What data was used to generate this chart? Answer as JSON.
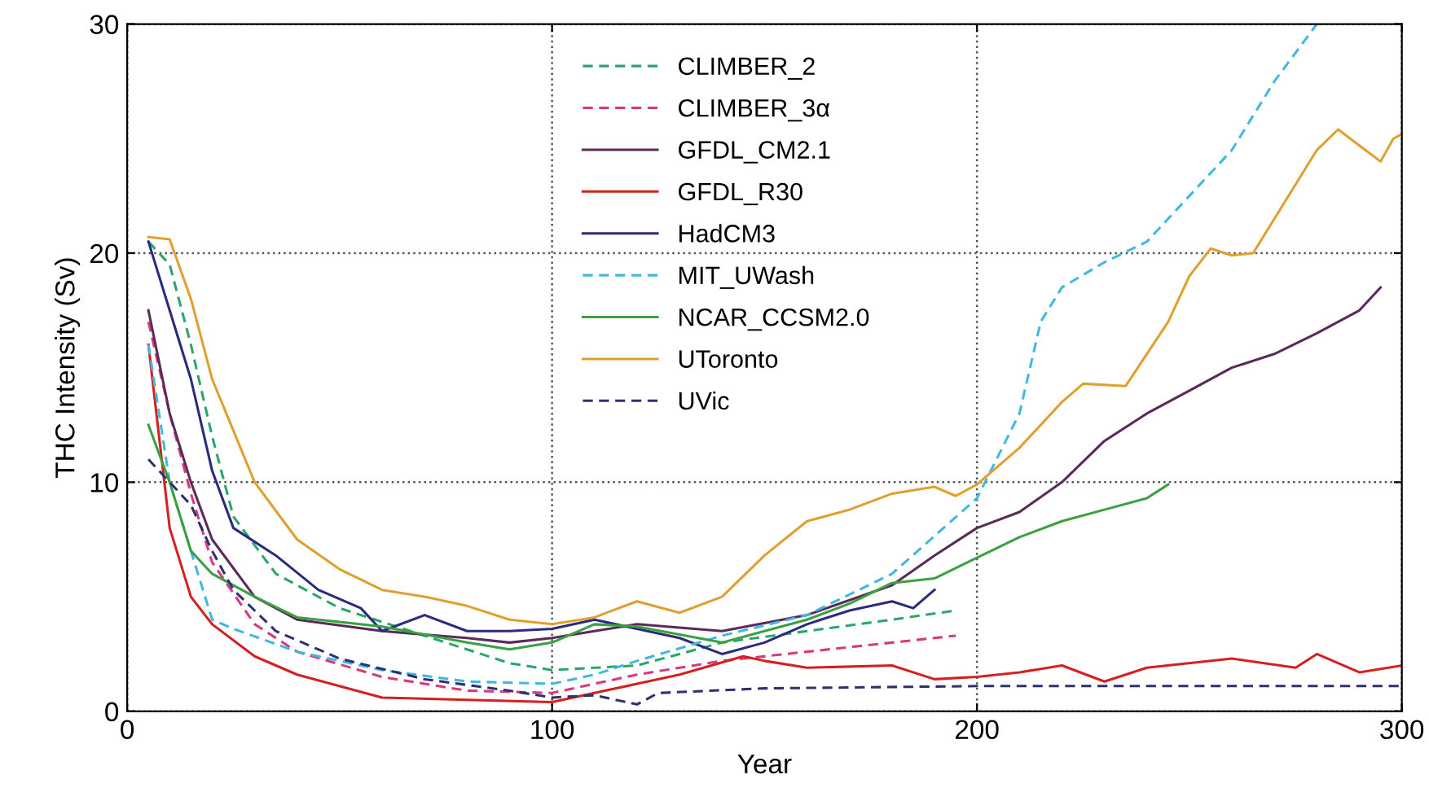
{
  "chart_data": {
    "type": "line",
    "xlabel": "Year",
    "ylabel": "THC Intensity (Sv)",
    "xlim": [
      0,
      300
    ],
    "ylim": [
      0,
      30
    ],
    "xticks": [
      0,
      100,
      200,
      300
    ],
    "yticks": [
      0,
      10,
      20,
      30
    ],
    "grid": true,
    "legend": "top",
    "marker": "none",
    "series": [
      {
        "name": "CLIMBER_2",
        "color": "#2aa66a",
        "line_style": "dashed",
        "x": [
          5,
          10,
          15,
          20,
          25,
          35,
          50,
          70,
          90,
          100,
          120,
          140,
          160,
          180,
          195
        ],
        "values": [
          20.5,
          19.5,
          16,
          12,
          8.5,
          6,
          4.5,
          3.3,
          2.1,
          1.8,
          2.0,
          3.0,
          3.5,
          4.0,
          4.4
        ]
      },
      {
        "name": "CLIMBER_3α",
        "color": "#d63a7c",
        "line_style": "dashed",
        "x": [
          5,
          10,
          15,
          20,
          30,
          40,
          60,
          80,
          100,
          110,
          120,
          140,
          160,
          180,
          195
        ],
        "values": [
          17,
          13,
          9.5,
          6.5,
          3.8,
          2.6,
          1.5,
          0.9,
          0.8,
          1.2,
          1.6,
          2.2,
          2.6,
          3.0,
          3.3
        ]
      },
      {
        "name": "GFDL_CM2.1",
        "color": "#5a2a58",
        "line_style": "solid",
        "x": [
          5,
          10,
          15,
          20,
          30,
          40,
          60,
          80,
          90,
          100,
          110,
          120,
          140,
          160,
          180,
          190,
          200,
          210,
          220,
          230,
          240,
          250,
          260,
          270,
          280,
          290,
          295
        ],
        "values": [
          17.5,
          13,
          10,
          7.5,
          5,
          4,
          3.5,
          3.2,
          3,
          3.2,
          3.5,
          3.8,
          3.5,
          4.2,
          5.5,
          6.8,
          8,
          8.7,
          10,
          11.8,
          13,
          14,
          15,
          15.6,
          16.5,
          17.5,
          18.5
        ]
      },
      {
        "name": "GFDL_R30",
        "color": "#d62020",
        "line_style": "solid",
        "x": [
          5,
          10,
          15,
          20,
          30,
          40,
          60,
          80,
          100,
          110,
          120,
          130,
          145,
          150,
          160,
          180,
          190,
          200,
          210,
          220,
          230,
          240,
          260,
          275,
          280,
          290,
          300
        ],
        "values": [
          16,
          8,
          5,
          3.8,
          2.4,
          1.6,
          0.6,
          0.5,
          0.4,
          0.8,
          1.2,
          1.6,
          2.4,
          2.2,
          1.9,
          2.0,
          1.4,
          1.5,
          1.7,
          2.0,
          1.3,
          1.9,
          2.3,
          1.9,
          2.5,
          1.7,
          2.0
        ]
      },
      {
        "name": "HadCM3",
        "color": "#2a2a80",
        "line_style": "solid",
        "x": [
          5,
          10,
          15,
          20,
          25,
          35,
          45,
          55,
          60,
          70,
          80,
          90,
          100,
          110,
          120,
          130,
          140,
          150,
          160,
          170,
          180,
          185,
          190
        ],
        "values": [
          20.5,
          17.5,
          14.5,
          10.5,
          8,
          6.8,
          5.3,
          4.5,
          3.5,
          4.2,
          3.5,
          3.5,
          3.6,
          4,
          3.6,
          3.2,
          2.5,
          3.0,
          3.8,
          4.4,
          4.8,
          4.5,
          5.3
        ]
      },
      {
        "name": "MIT_UWash",
        "color": "#40b8e0",
        "line_style": "dashed",
        "x": [
          5,
          10,
          15,
          20,
          25,
          40,
          60,
          80,
          100,
          110,
          120,
          140,
          160,
          180,
          200,
          210,
          215,
          220,
          230,
          240,
          250,
          260,
          270,
          280
        ],
        "values": [
          16,
          10,
          7,
          4,
          3.6,
          2.6,
          1.8,
          1.3,
          1.2,
          1.6,
          2.2,
          3.3,
          4.2,
          6,
          9.3,
          13,
          17,
          18.5,
          19.6,
          20.5,
          22.5,
          24.5,
          27.5,
          30
        ]
      },
      {
        "name": "NCAR_CCSM2.0",
        "color": "#3aa040",
        "line_style": "solid",
        "x": [
          5,
          10,
          15,
          20,
          30,
          40,
          60,
          80,
          90,
          100,
          110,
          120,
          140,
          150,
          160,
          170,
          180,
          190,
          200,
          210,
          220,
          230,
          240,
          245
        ],
        "values": [
          12.5,
          10,
          7,
          6,
          5,
          4.1,
          3.7,
          3,
          2.7,
          3.0,
          3.8,
          3.7,
          3.0,
          3.5,
          4.0,
          4.7,
          5.6,
          5.8,
          6.7,
          7.6,
          8.3,
          8.8,
          9.3,
          9.9
        ]
      },
      {
        "name": "UToronto",
        "color": "#e0a030",
        "line_style": "solid",
        "x": [
          5,
          10,
          15,
          20,
          30,
          40,
          50,
          60,
          70,
          80,
          90,
          100,
          110,
          120,
          130,
          140,
          150,
          160,
          170,
          180,
          190,
          195,
          200,
          210,
          220,
          225,
          235,
          245,
          250,
          255,
          260,
          265,
          270,
          280,
          285,
          290,
          295,
          298,
          300
        ],
        "values": [
          20.7,
          20.6,
          18,
          14.5,
          10,
          7.5,
          6.2,
          5.3,
          5,
          4.6,
          4,
          3.8,
          4.1,
          4.8,
          4.3,
          5,
          6.8,
          8.3,
          8.8,
          9.5,
          9.8,
          9.4,
          9.9,
          11.5,
          13.5,
          14.3,
          14.2,
          17,
          19,
          20.2,
          19.9,
          20,
          21.5,
          24.5,
          25.4,
          24.7,
          24,
          25,
          25.2
        ]
      },
      {
        "name": "UVic",
        "color": "#303070",
        "line_style": "dashed",
        "x": [
          5,
          10,
          15,
          20,
          25,
          35,
          50,
          70,
          90,
          100,
          110,
          120,
          125,
          150,
          200,
          300
        ],
        "values": [
          11,
          10,
          9,
          7,
          5.3,
          3.5,
          2.3,
          1.4,
          0.9,
          0.6,
          0.7,
          0.3,
          0.8,
          1.0,
          1.1,
          1.1
        ]
      }
    ]
  }
}
